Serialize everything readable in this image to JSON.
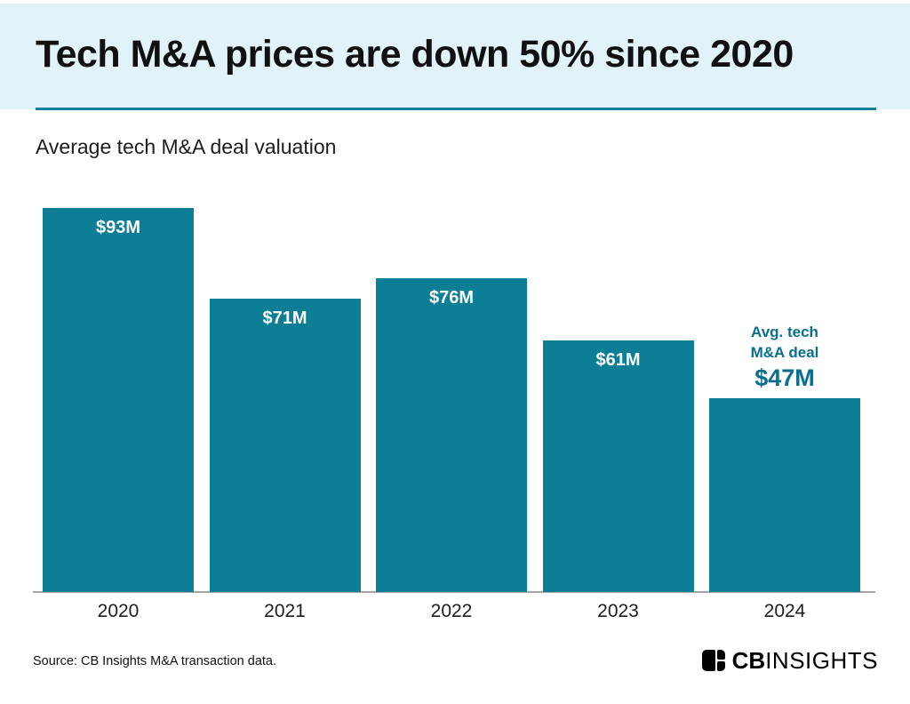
{
  "header": {
    "title": "Tech M&A prices are down 50% since 2020"
  },
  "chart_data": {
    "type": "bar",
    "title": "Average tech M&A deal valuation",
    "xlabel": "",
    "ylabel": "",
    "categories": [
      "2020",
      "2021",
      "2022",
      "2023",
      "2024"
    ],
    "values": [
      93,
      71,
      76,
      61,
      47
    ],
    "bar_labels": [
      "$93M",
      "$71M",
      "$76M",
      "$61M",
      "$47M"
    ],
    "unit": "$M",
    "ylim": [
      0,
      93
    ],
    "grid": false,
    "yaxis_visible": false,
    "legend": "none",
    "annotation": {
      "target_category": "2024",
      "lines": [
        "Avg. tech",
        "M&A deal"
      ],
      "value_label": "$47M"
    }
  },
  "footer": {
    "source": "Source: CB Insights M&A transaction data.",
    "logo": {
      "bold": "CB",
      "light": "INSIGHTS"
    }
  },
  "colors": {
    "header_bg": "#e1f3f8",
    "divider": "#0b7f9b",
    "bar": "#0c7e96",
    "bar_label": "#ffffff",
    "annotation_text": "#0a6e8d",
    "axis": "#a6a6a6"
  }
}
